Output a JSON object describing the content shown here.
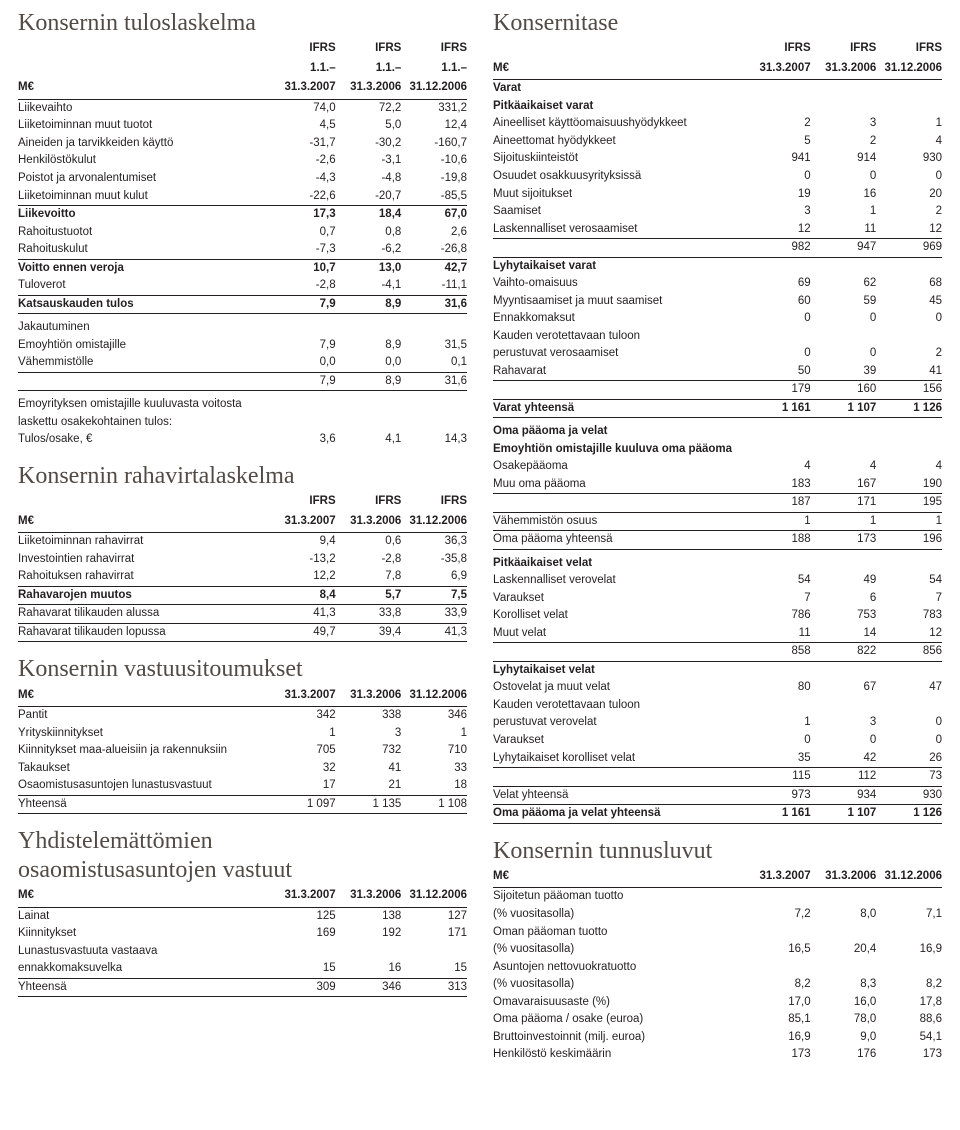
{
  "left": {
    "income": {
      "title": "Konsernin tuloslaskelma",
      "header": {
        "unit": "M€",
        "h1a": "IFRS",
        "h1b": "1.1.–",
        "h1c": "31.3.2007",
        "h2a": "IFRS",
        "h2b": "1.1.–",
        "h2c": "31.3.2006",
        "h3a": "IFRS",
        "h3b": "1.1.–",
        "h3c": "31.12.2006"
      },
      "rows": [
        {
          "l": "Liikevaihto",
          "a": "74,0",
          "b": "72,2",
          "c": "331,2"
        },
        {
          "l": "Liiketoiminnan muut tuotot",
          "a": "4,5",
          "b": "5,0",
          "c": "12,4"
        },
        {
          "l": "Aineiden ja tarvikkeiden käyttö",
          "a": "-31,7",
          "b": "-30,2",
          "c": "-160,7"
        },
        {
          "l": "Henkilöstökulut",
          "a": "-2,6",
          "b": "-3,1",
          "c": "-10,6"
        },
        {
          "l": "Poistot ja arvonalentumiset",
          "a": "-4,3",
          "b": "-4,8",
          "c": "-19,8"
        },
        {
          "l": "Liiketoiminnan muut kulut",
          "a": "-22,6",
          "b": "-20,7",
          "c": "-85,5"
        }
      ],
      "liikevoivotto": {
        "l": "Liikevoitto",
        "a": "17,3",
        "b": "18,4",
        "c": "67,0"
      },
      "rows2": [
        {
          "l": "Rahoitustuotot",
          "a": "0,7",
          "b": "0,8",
          "c": "2,6"
        },
        {
          "l": "Rahoituskulut",
          "a": "-7,3",
          "b": "-6,2",
          "c": "-26,8"
        }
      ],
      "voitto": {
        "l": "Voitto ennen veroja",
        "a": "10,7",
        "b": "13,0",
        "c": "42,7"
      },
      "tuloverot": {
        "l": "Tuloverot",
        "a": "-2,8",
        "b": "-4,1",
        "c": "-11,1"
      },
      "katsaus": {
        "l": "Katsauskauden tulos",
        "a": "7,9",
        "b": "8,9",
        "c": "31,6"
      },
      "jak": [
        {
          "l": "Jakautuminen",
          "a": "",
          "b": "",
          "c": ""
        },
        {
          "l": "Emoyhtiön omistajille",
          "a": "7,9",
          "b": "8,9",
          "c": "31,5"
        },
        {
          "l": "Vähemmistölle",
          "a": "0,0",
          "b": "0,0",
          "c": "0,1"
        }
      ],
      "jaktot": {
        "l": "",
        "a": "7,9",
        "b": "8,9",
        "c": "31,6"
      },
      "eps1": "Emoyrityksen omistajille kuuluvasta voitosta",
      "eps2": "laskettu osakekohtainen tulos:",
      "eps": {
        "l": "Tulos/osake, €",
        "a": "3,6",
        "b": "4,1",
        "c": "14,3"
      }
    },
    "cashflow": {
      "title": "Konsernin rahavirtalaskelma",
      "header": {
        "unit": "M€",
        "h1a": "IFRS",
        "h1c": "31.3.2007",
        "h2a": "IFRS",
        "h2c": "31.3.2006",
        "h3a": "IFRS",
        "h3c": "31.12.2006"
      },
      "rows": [
        {
          "l": "Liiketoiminnan rahavirrat",
          "a": "9,4",
          "b": "0,6",
          "c": "36,3"
        },
        {
          "l": "Investointien rahavirrat",
          "a": "-13,2",
          "b": "-2,8",
          "c": "-35,8"
        },
        {
          "l": "Rahoituksen rahavirrat",
          "a": "12,2",
          "b": "7,8",
          "c": "6,9"
        }
      ],
      "muutos": {
        "l": "Rahavarojen muutos",
        "a": "8,4",
        "b": "5,7",
        "c": "7,5"
      },
      "alussa": {
        "l": "Rahavarat tilikauden alussa",
        "a": "41,3",
        "b": "33,8",
        "c": "33,9"
      },
      "lopussa": {
        "l": "Rahavarat tilikauden lopussa",
        "a": "49,7",
        "b": "39,4",
        "c": "41,3"
      }
    },
    "commit": {
      "title": "Konsernin vastuusitoumukset",
      "header": {
        "unit": "M€",
        "h1": "31.3.2007",
        "h2": "31.3.2006",
        "h3": "31.12.2006"
      },
      "rows": [
        {
          "l": "Pantit",
          "a": "342",
          "b": "338",
          "c": "346"
        },
        {
          "l": "Yrityskiinnitykset",
          "a": "1",
          "b": "3",
          "c": "1"
        },
        {
          "l": "Kiinnitykset maa-alueisiin ja rakennuksiin",
          "a": "705",
          "b": "732",
          "c": "710"
        },
        {
          "l": "Takaukset",
          "a": "32",
          "b": "41",
          "c": "33"
        },
        {
          "l": "Osaomistusasuntojen lunastusvastuut",
          "a": "17",
          "b": "21",
          "c": "18"
        }
      ],
      "tot": {
        "l": "Yhteensä",
        "a": "1 097",
        "b": "1 135",
        "c": "1 108"
      }
    },
    "uncomb": {
      "title1": "Yhdistelemättömien",
      "title2": "osaomistusasuntojen vastuut",
      "header": {
        "unit": "M€",
        "h1": "31.3.2007",
        "h2": "31.3.2006",
        "h3": "31.12.2006"
      },
      "rows": [
        {
          "l": "Lainat",
          "a": "125",
          "b": "138",
          "c": "127"
        },
        {
          "l": "Kiinnitykset",
          "a": "169",
          "b": "192",
          "c": "171"
        },
        {
          "l": "Lunastusvastuuta vastaava",
          "a": "",
          "b": "",
          "c": ""
        },
        {
          "l": "ennakkomaksuvelka",
          "a": "15",
          "b": "16",
          "c": "15"
        }
      ],
      "tot": {
        "l": "Yhteensä",
        "a": "309",
        "b": "346",
        "c": "313"
      }
    }
  },
  "right": {
    "balance": {
      "title": "Konsernitase",
      "header": {
        "unit": "M€",
        "h1a": "IFRS",
        "h1c": "31.3.2007",
        "h2a": "IFRS",
        "h2c": "31.3.2006",
        "h3a": "IFRS",
        "h3c": "31.12.2006"
      },
      "varat": "Varat",
      "pitka": "Pitkäaikaiset varat",
      "prows": [
        {
          "l": "Aineelliset käyttöomaisuushyödykkeet",
          "a": "2",
          "b": "3",
          "c": "1"
        },
        {
          "l": "Aineettomat hyödykkeet",
          "a": "5",
          "b": "2",
          "c": "4"
        },
        {
          "l": "Sijoituskiinteistöt",
          "a": "941",
          "b": "914",
          "c": "930"
        },
        {
          "l": "Osuudet osakkuusyrityksissä",
          "a": "0",
          "b": "0",
          "c": "0"
        },
        {
          "l": "Muut sijoitukset",
          "a": "19",
          "b": "16",
          "c": "20"
        },
        {
          "l": "Saamiset",
          "a": "3",
          "b": "1",
          "c": "2"
        },
        {
          "l": "Laskennalliset verosaamiset",
          "a": "12",
          "b": "11",
          "c": "12"
        }
      ],
      "psub": {
        "l": "",
        "a": "982",
        "b": "947",
        "c": "969"
      },
      "lyhyt": "Lyhytaikaiset varat",
      "lrows": [
        {
          "l": "Vaihto-omaisuus",
          "a": "69",
          "b": "62",
          "c": "68"
        },
        {
          "l": "Myyntisaamiset ja muut saamiset",
          "a": "60",
          "b": "59",
          "c": "45"
        },
        {
          "l": "Ennakkomaksut",
          "a": "0",
          "b": "0",
          "c": "0"
        },
        {
          "l": "Kauden verotettavaan tuloon",
          "a": "",
          "b": "",
          "c": ""
        },
        {
          "l": "perustuvat verosaamiset",
          "a": "0",
          "b": "0",
          "c": "2"
        },
        {
          "l": "Rahavarat",
          "a": "50",
          "b": "39",
          "c": "41"
        }
      ],
      "lsub": {
        "l": "",
        "a": "179",
        "b": "160",
        "c": "156"
      },
      "varatyht": {
        "l": "Varat yhteensä",
        "a": "1 161",
        "b": "1 107",
        "c": "1 126"
      },
      "oma": "Oma pääoma ja velat",
      "emo": "Emoyhtiön omistajille kuuluva oma pääoma",
      "erows": [
        {
          "l": "Osakepääoma",
          "a": "4",
          "b": "4",
          "c": "4"
        },
        {
          "l": "Muu oma pääoma",
          "a": "183",
          "b": "167",
          "c": "190"
        }
      ],
      "esub": {
        "l": "",
        "a": "187",
        "b": "171",
        "c": "195"
      },
      "vah": {
        "l": "Vähemmistön osuus",
        "a": "1",
        "b": "1",
        "c": "1"
      },
      "omayht": {
        "l": "Oma pääoma yhteensä",
        "a": "188",
        "b": "173",
        "c": "196"
      },
      "pvelat": "Pitkäaikaiset velat",
      "pvrows": [
        {
          "l": "Laskennalliset verovelat",
          "a": "54",
          "b": "49",
          "c": "54"
        },
        {
          "l": "Varaukset",
          "a": "7",
          "b": "6",
          "c": "7"
        },
        {
          "l": "Korolliset velat",
          "a": "786",
          "b": "753",
          "c": "783"
        },
        {
          "l": "Muut velat",
          "a": "11",
          "b": "14",
          "c": "12"
        }
      ],
      "pvsub": {
        "l": "",
        "a": "858",
        "b": "822",
        "c": "856"
      },
      "lvelat": "Lyhytaikaiset velat",
      "lvrows": [
        {
          "l": "Ostovelat ja muut velat",
          "a": "80",
          "b": "67",
          "c": "47"
        },
        {
          "l": "Kauden verotettavaan tuloon",
          "a": "",
          "b": "",
          "c": ""
        },
        {
          "l": "perustuvat verovelat",
          "a": "1",
          "b": "3",
          "c": "0"
        },
        {
          "l": "Varaukset",
          "a": "0",
          "b": "0",
          "c": "0"
        },
        {
          "l": "Lyhytaikaiset korolliset velat",
          "a": "35",
          "b": "42",
          "c": "26"
        }
      ],
      "lvsub": {
        "l": "",
        "a": "115",
        "b": "112",
        "c": "73"
      },
      "velatyht": {
        "l": "Velat yhteensä",
        "a": "973",
        "b": "934",
        "c": "930"
      },
      "tot": {
        "l": "Oma pääoma ja velat yhteensä",
        "a": "1 161",
        "b": "1 107",
        "c": "1 126"
      }
    },
    "ratios": {
      "title": "Konsernin tunnusluvut",
      "header": {
        "unit": "M€",
        "h1": "31.3.2007",
        "h2": "31.3.2006",
        "h3": "31.12.2006"
      },
      "rows": [
        {
          "l1": "Sijoitetun pääoman tuotto",
          "l2": "(% vuositasolla)",
          "a": "7,2",
          "b": "8,0",
          "c": "7,1"
        },
        {
          "l1": "Oman pääoman tuotto",
          "l2": "(% vuositasolla)",
          "a": "16,5",
          "b": "20,4",
          "c": "16,9"
        },
        {
          "l1": "Asuntojen nettovuokratuotto",
          "l2": "(% vuositasolla)",
          "a": "8,2",
          "b": "8,3",
          "c": "8,2"
        },
        {
          "l1": "Omavaraisuusaste (%)",
          "l2": "",
          "a": "17,0",
          "b": "16,0",
          "c": "17,8"
        },
        {
          "l1": "Oma pääoma / osake (euroa)",
          "l2": "",
          "a": "85,1",
          "b": "78,0",
          "c": "88,6"
        },
        {
          "l1": "Bruttoinvestoinnit (milj. euroa)",
          "l2": "",
          "a": "16,9",
          "b": "9,0",
          "c": "54,1"
        },
        {
          "l1": "Henkilöstö keskimäärin",
          "l2": "",
          "a": "173",
          "b": "176",
          "c": "173"
        }
      ]
    }
  }
}
